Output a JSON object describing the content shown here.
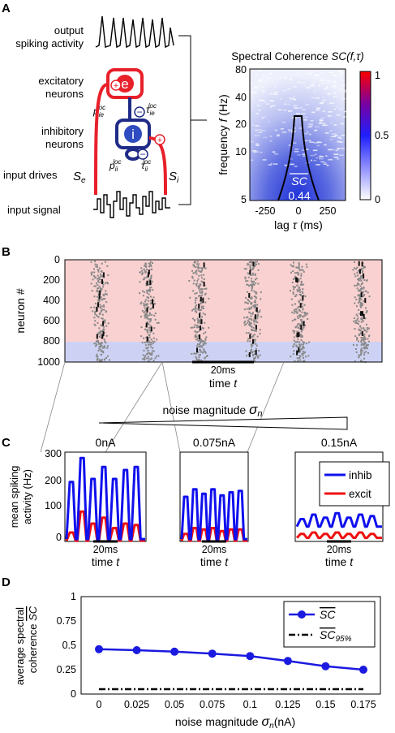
{
  "panel_labels": {
    "A": "A",
    "B": "B",
    "C": "C",
    "D": "D"
  },
  "panelA": {
    "labels": {
      "output": [
        "output",
        "spiking activity"
      ],
      "excitatory": [
        "excitatory",
        "neurons"
      ],
      "inhibitory": [
        "inhibitory",
        "neurons"
      ],
      "input_drives": "input drives",
      "input_signal": "input signal",
      "node_e": "e",
      "node_i": "i",
      "sym_Se": "S",
      "sub_e": "e",
      "sym_Si": "S",
      "sub_i": "i",
      "p_ie": "p",
      "tau_ie": "τ",
      "p_ii": "p",
      "tau_ii": "τ",
      "sub_ie": "ie",
      "sub_ii": "ii",
      "sup_loc": "loc",
      "plus": "+",
      "minus": "−"
    },
    "colors": {
      "excitatory": "#e8202a",
      "inhibitory": "#1f2b86"
    },
    "heatmap": {
      "title": "Spectral Coherence",
      "title_sym": "SC(f,τ)",
      "ylabel_word": "frequency",
      "ylabel_sym": "f",
      "ylabel_unit": "(Hz)",
      "xlabel_word": "lag",
      "xlabel_sym": "τ",
      "xlabel_unit": "(ms)",
      "yticks": [
        "80",
        "40",
        "20",
        "10",
        "5"
      ],
      "xticks": [
        "-250",
        "0",
        "250"
      ],
      "colorbar_ticks": [
        "1",
        "0.5",
        "0"
      ],
      "sc_label": "SC",
      "sc_value": "0.44"
    }
  },
  "panelB": {
    "ylabel": "neuron #",
    "yticks": [
      "0",
      "200",
      "400",
      "600",
      "800",
      "1000"
    ],
    "scale_label": "20ms",
    "xlabel_word": "time",
    "xlabel_sym": "t",
    "excitatory_range": [
      0,
      800
    ],
    "inhibitory_range": [
      800,
      1000
    ],
    "colors": {
      "excitatory_bg": "#f9d1d1",
      "inhibitory_bg": "#cdd2f4",
      "spikes": "#888888"
    }
  },
  "noise_wedge": {
    "label": "noise magnitude",
    "sym": "σ",
    "sub": "n"
  },
  "panelC": {
    "ylabel": [
      "mean spiking",
      "activity (Hz)"
    ],
    "yticks": [
      "0",
      "100",
      "200",
      "300"
    ],
    "scale_label": "20ms",
    "xlabel_word": "time",
    "xlabel_sym": "t",
    "conditions": [
      "0nA",
      "0.075nA",
      "0.15nA"
    ],
    "legend": {
      "inhib": "inhib",
      "excit": "excit"
    },
    "series_colors": {
      "inhib": "#1010ee",
      "excit": "#ee1010"
    },
    "chart_data": [
      {
        "type": "line",
        "title": "0nA",
        "ylim": [
          0,
          300
        ],
        "series": [
          {
            "name": "inhib",
            "peaks": [
              200,
              280,
              210,
              250,
              210,
              240,
              250
            ]
          },
          {
            "name": "excit",
            "peaks": [
              30,
              100,
              60,
              80,
              45,
              60,
              55
            ]
          }
        ]
      },
      {
        "type": "line",
        "title": "0.075nA",
        "ylim": [
          0,
          300
        ],
        "series": [
          {
            "name": "inhib",
            "peaks": [
              150,
              175,
              160,
              175,
              155,
              165,
              170
            ]
          },
          {
            "name": "excit",
            "peaks": [
              25,
              45,
              40,
              45,
              35,
              40,
              40
            ]
          }
        ]
      },
      {
        "type": "line",
        "title": "0.15nA",
        "ylim": [
          0,
          300
        ],
        "series": [
          {
            "name": "inhib",
            "peaks": [
              75,
              90,
              80,
              95,
              80,
              90,
              85
            ]
          },
          {
            "name": "excit",
            "peaks": [
              25,
              30,
              25,
              30,
              25,
              30,
              25
            ]
          }
        ]
      }
    ]
  },
  "panelD": {
    "chart_data": {
      "type": "line",
      "ylabel": [
        "average spectral",
        "coherence"
      ],
      "ylabel_sym": "SC",
      "xlabel": "noise magnitude",
      "xlabel_sym": "σ",
      "xlabel_sub": "n",
      "xlabel_unit": "(nA)",
      "x": [
        0,
        0.025,
        0.05,
        0.075,
        0.1,
        0.125,
        0.15,
        0.175
      ],
      "xticks": [
        "0",
        "0.025",
        "0.05",
        "0.075",
        "0.1",
        "0.125",
        "0.15",
        "0.175"
      ],
      "ylim": [
        0,
        1
      ],
      "yticks": [
        "0",
        "0.25",
        "0.5",
        "0.75",
        "1"
      ],
      "series": [
        {
          "name": "SC",
          "values": [
            0.46,
            0.45,
            0.435,
            0.415,
            0.39,
            0.34,
            0.285,
            0.25
          ]
        },
        {
          "name": "SC",
          "sub": "95%",
          "values": [
            0.05,
            0.05,
            0.05,
            0.05,
            0.05,
            0.05,
            0.05,
            0.05
          ]
        }
      ],
      "legend_position": "top-right",
      "colors": {
        "mean": "#1a1ae0",
        "significance": "#000000"
      }
    }
  }
}
